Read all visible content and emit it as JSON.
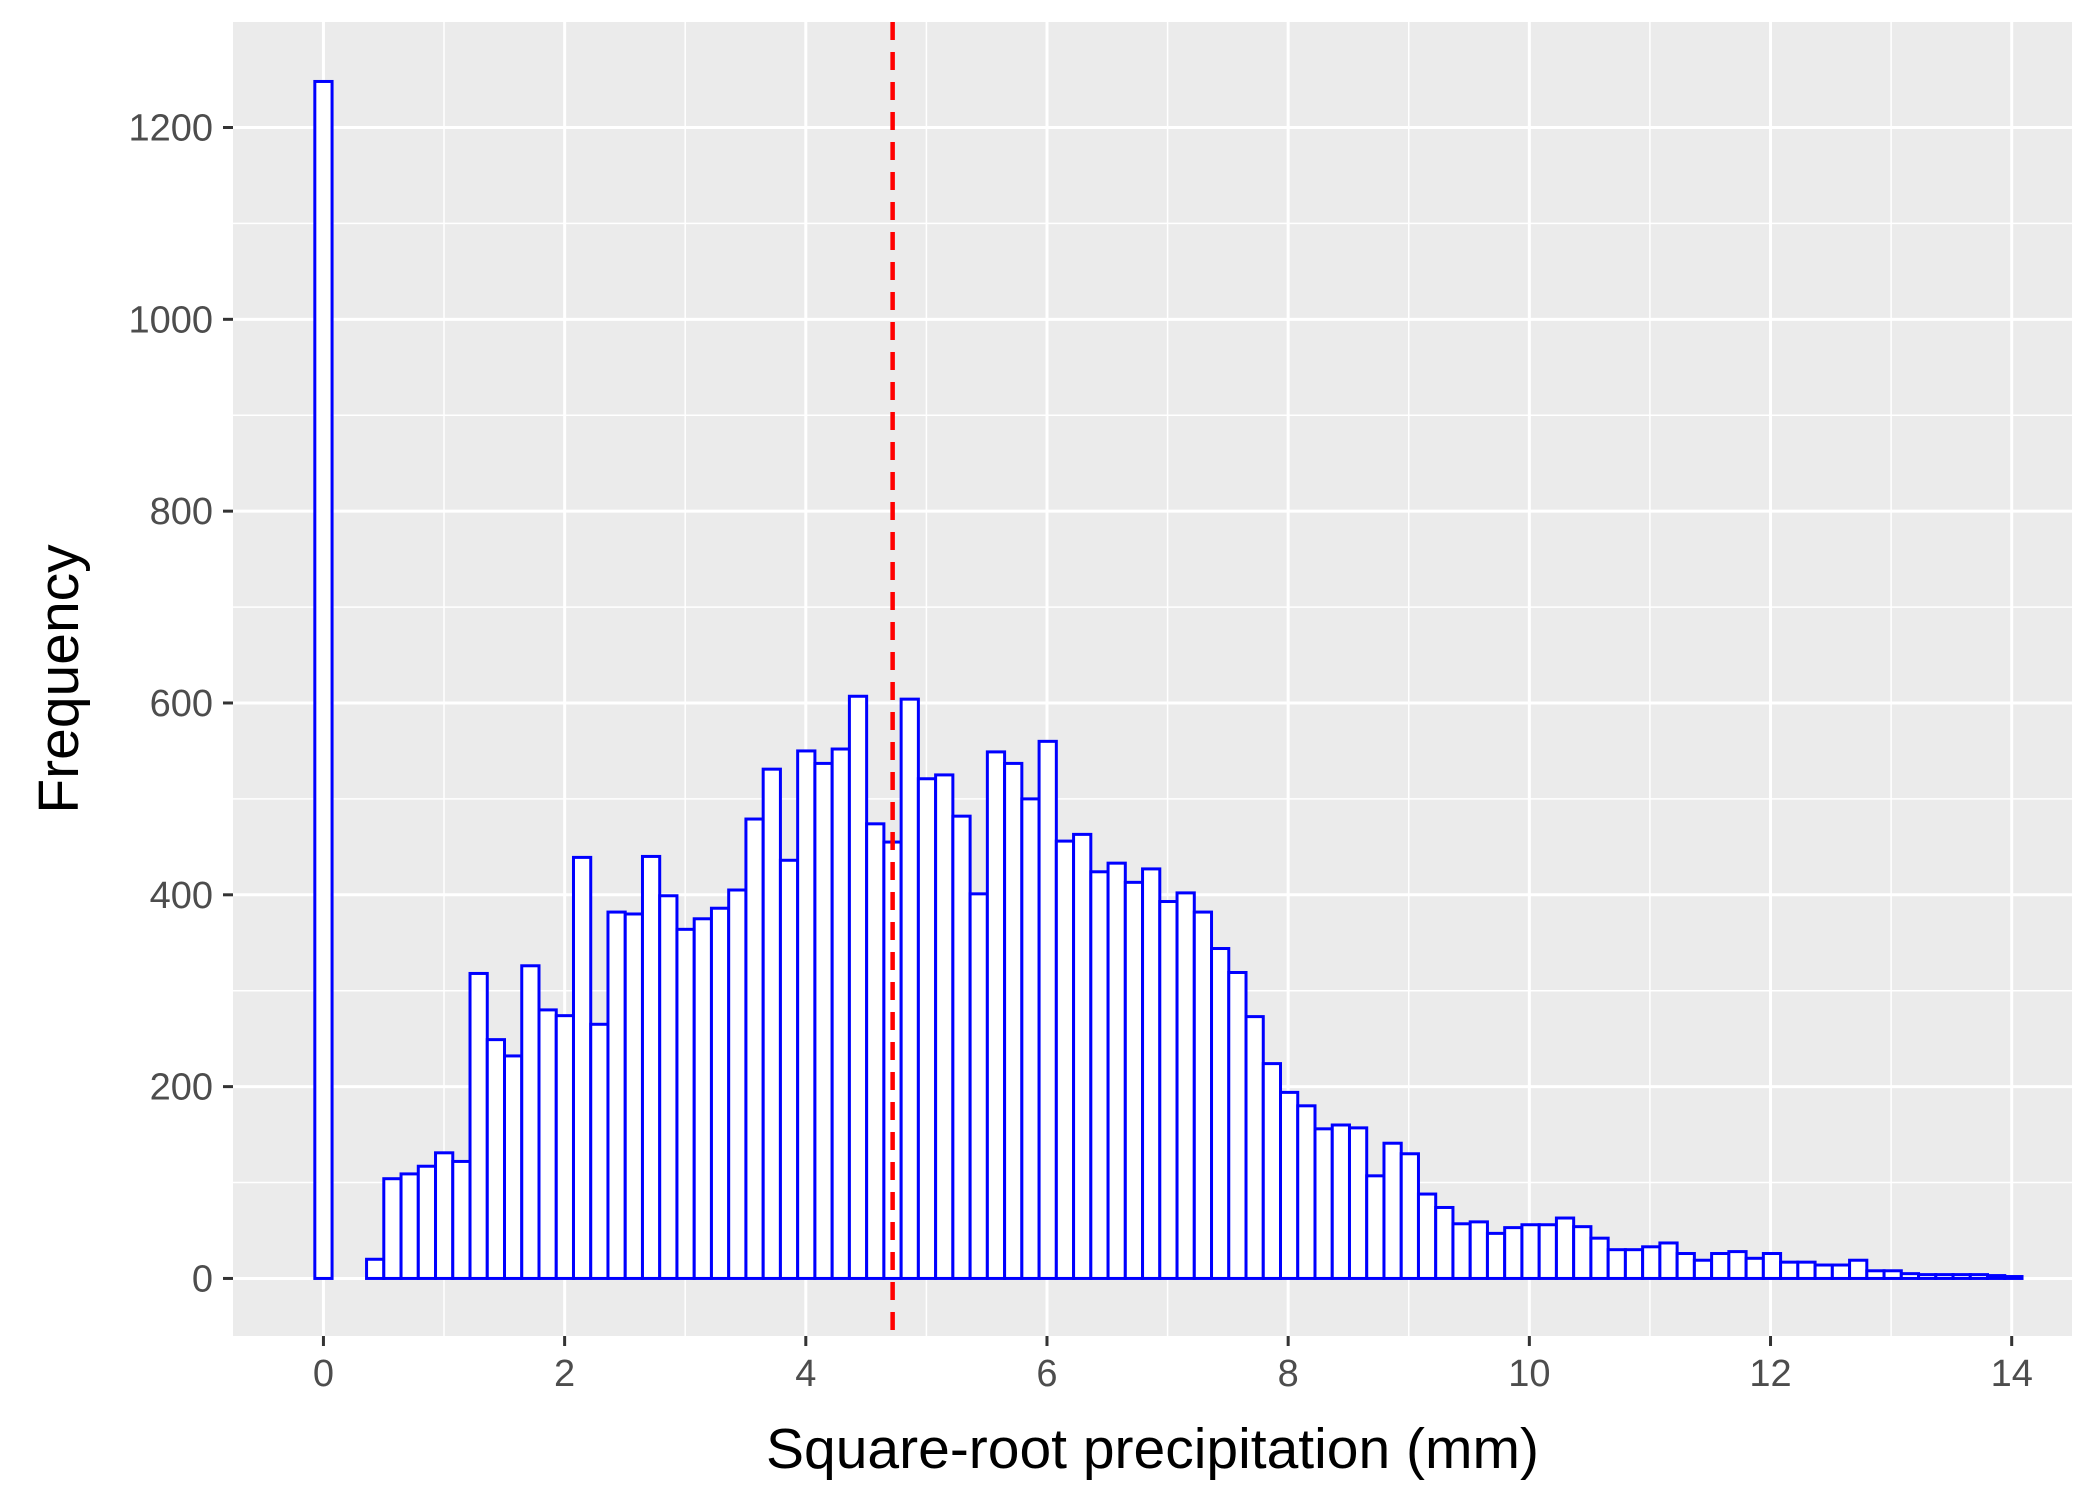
{
  "chart_data": {
    "type": "bar",
    "subtype": "histogram",
    "title": "",
    "xlabel": "Square-root precipitation (mm)",
    "ylabel": "Frequency",
    "xlim": [
      -0.75,
      14.5
    ],
    "ylim": [
      -60,
      1310
    ],
    "x_ticks": [
      0,
      2,
      4,
      6,
      8,
      10,
      12,
      14
    ],
    "y_ticks": [
      0,
      200,
      400,
      600,
      800,
      1000,
      1200
    ],
    "grid": true,
    "legend": "none",
    "bin_width": 0.143,
    "bin_start": -0.0715,
    "values": [
      1248,
      0,
      0,
      20,
      104,
      109,
      117,
      131,
      122,
      318,
      249,
      232,
      326,
      280,
      274,
      439,
      265,
      382,
      380,
      440,
      399,
      364,
      375,
      386,
      405,
      479,
      531,
      436,
      550,
      537,
      552,
      607,
      474,
      455,
      604,
      521,
      525,
      482,
      401,
      549,
      537,
      500,
      560,
      456,
      463,
      424,
      433,
      413,
      427,
      393,
      402,
      382,
      344,
      319,
      273,
      224,
      194,
      180,
      156,
      160,
      157,
      107,
      141,
      130,
      88,
      74,
      57,
      59,
      47,
      53,
      56,
      56,
      63,
      54,
      42,
      30,
      30,
      33,
      37,
      26,
      19,
      26,
      28,
      21,
      26,
      17,
      17,
      14,
      14,
      19,
      8,
      8,
      5,
      4,
      4,
      4,
      4,
      3,
      2
    ],
    "reference_line": {
      "x": 4.72,
      "orientation": "vertical",
      "style": "dashed"
    },
    "colors": {
      "bar_outline": "#0000ff",
      "bar_fill": "#ffffff",
      "reference_line": "#ff0000",
      "panel_background": "#ebebeb",
      "grid_line": "#ffffff",
      "tick_mark": "#333333",
      "tick_text": "#4d4d4d",
      "axis_title": "#000000"
    }
  }
}
